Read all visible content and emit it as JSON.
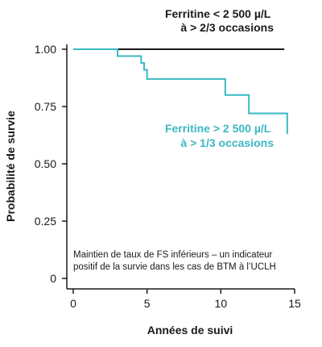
{
  "chart_data": {
    "type": "line",
    "title": "",
    "xlabel": "Années de suivi",
    "ylabel": "Probabilité de survie",
    "xlim": [
      0,
      15
    ],
    "ylim": [
      0,
      1.0
    ],
    "x_ticks": [
      0,
      5,
      10,
      15
    ],
    "x_tick_labels": [
      "0",
      "5",
      "10",
      "15"
    ],
    "y_ticks": [
      0,
      0.25,
      0.5,
      0.75,
      1.0
    ],
    "y_tick_labels": [
      "0",
      "0.25",
      "0.50",
      "0.75",
      "1.00"
    ],
    "grid": false,
    "step": true,
    "series": [
      {
        "name_lines": [
          "Ferritine < 2 500 µ/L",
          "à > 2/3 occasions"
        ],
        "color": "#1a1a1a",
        "x": [
          0,
          14.3
        ],
        "y": [
          1.0,
          1.0
        ]
      },
      {
        "name_lines": [
          "Ferritine > 2 500 µ/L",
          "à > 1/3 occasions"
        ],
        "color": "#3bb8c3",
        "x": [
          0,
          3,
          4.6,
          4.8,
          5,
          10.3,
          11.9,
          14.5
        ],
        "y": [
          1.0,
          0.97,
          0.94,
          0.91,
          0.87,
          0.8,
          0.72,
          0.63
        ]
      }
    ],
    "annotation_lines": [
      "Maintien de taux de FS inférieurs – un indicateur",
      "positif de la survie dans les cas de BTM à l’UCLH"
    ]
  }
}
